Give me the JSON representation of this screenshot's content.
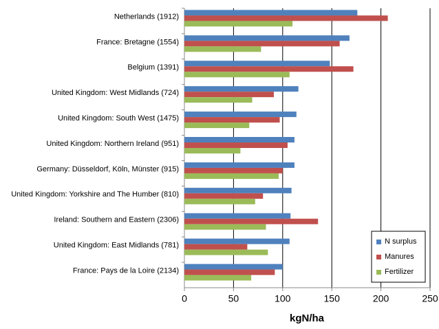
{
  "chart_data": {
    "type": "hbar",
    "x_label": "kgN/ha",
    "categories": [
      "Netherlands (1912)",
      "France: Bretagne (1554)",
      "Belgium (1391)",
      "United Kingdom: West Midlands (724)",
      "United Kingdom: South West (1475)",
      "United Kingdom: Northern Ireland (951)",
      "Germany: Düsseldorf, Köln, Münster (915)",
      "United Kingdom: Yorkshire and The Humber (810)",
      "Ireland: Southern and Eastern (2306)",
      "United Kingdom: East Midlands (781)",
      "France: Pays de la Loire (2134)"
    ],
    "series": [
      {
        "name": "N surplus",
        "color": "#4f81bd",
        "values": [
          176,
          168,
          148,
          116,
          114,
          112,
          112,
          109,
          108,
          107,
          100
        ]
      },
      {
        "name": "Manures",
        "color": "#c0504d",
        "values": [
          207,
          158,
          172,
          91,
          97,
          105,
          100,
          80,
          136,
          64,
          92
        ]
      },
      {
        "name": "Fertilizer",
        "color": "#9bbb59",
        "values": [
          110,
          78,
          107,
          69,
          66,
          57,
          96,
          72,
          83,
          85,
          68
        ]
      }
    ],
    "xlim": [
      0,
      250
    ],
    "xticks": [
      0,
      50,
      100,
      150,
      200,
      250
    ],
    "grid": true,
    "legend": "lower right"
  }
}
